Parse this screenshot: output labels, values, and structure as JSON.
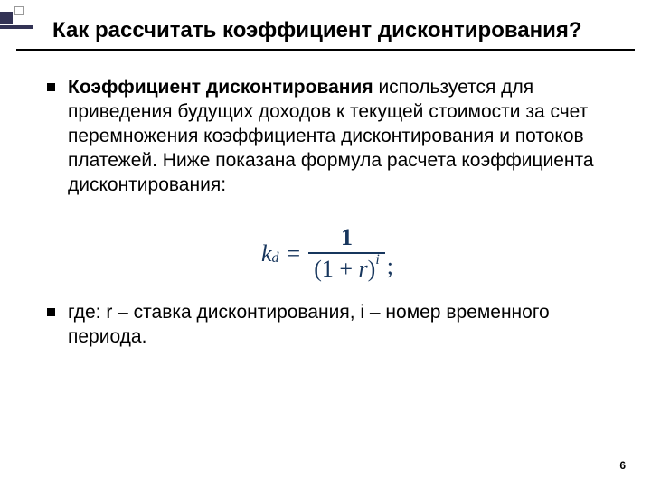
{
  "title": "Как рассчитать коэффициент дисконтирования?",
  "bullets": {
    "p1_bold": "Коэффициент дисконтирования",
    "p1_rest": " используется для приведения будущих доходов к текущей стоимости за счет перемножения коэффициента дисконтирования и потоков платежей. Ниже показана формула расчета коэффициента дисконтирования:",
    "p2": "где: r – ставка дисконтирования, i  – номер временного периода."
  },
  "formula": {
    "lhs_var": "k",
    "lhs_sub": "d",
    "numerator": "1",
    "denom_open": "(1 + ",
    "denom_var": "r",
    "denom_close": ")",
    "exponent": "i",
    "color": "#17365D",
    "fontsize": 26
  },
  "page_number": "6",
  "decoration": {
    "square_color": "#333355",
    "line_color": "#333355"
  }
}
